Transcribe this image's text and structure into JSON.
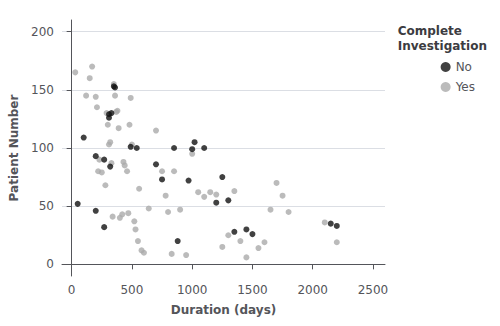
{
  "chart_data": {
    "type": "scatter",
    "xlabel": "Duration (days)",
    "ylabel": "Patient Number",
    "legend_title": "Complete\nInvestigation",
    "xlim": [
      -80,
      2600
    ],
    "ylim": [
      -10,
      210
    ],
    "xticks": [
      0,
      500,
      1000,
      1500,
      2000,
      2500
    ],
    "yticks": [
      0,
      50,
      100,
      150,
      200
    ],
    "grid": "y",
    "legend": "right",
    "series": [
      {
        "name": "No",
        "color": "#111111",
        "x": [
          50,
          100,
          200,
          200,
          270,
          270,
          310,
          310,
          320,
          330,
          350,
          360,
          490,
          540,
          700,
          750,
          850,
          880,
          970,
          1000,
          1020,
          1100,
          1200,
          1250,
          1300,
          1350,
          1450,
          1500,
          2150,
          2200
        ],
        "values": [
          52,
          109,
          93,
          46,
          90,
          32,
          129,
          126,
          84,
          130,
          153,
          152,
          101,
          100,
          86,
          73,
          100,
          20,
          72,
          99,
          105,
          100,
          53,
          75,
          55,
          28,
          30,
          26,
          35,
          33
        ]
      },
      {
        "name": "Yes",
        "color": "#aaaaaa",
        "x": [
          30,
          120,
          150,
          170,
          200,
          210,
          220,
          230,
          250,
          280,
          290,
          300,
          310,
          320,
          330,
          340,
          350,
          360,
          370,
          380,
          390,
          400,
          420,
          430,
          440,
          460,
          470,
          480,
          490,
          500,
          520,
          530,
          550,
          560,
          580,
          600,
          640,
          700,
          750,
          780,
          800,
          830,
          850,
          900,
          950,
          1000,
          1050,
          1100,
          1150,
          1200,
          1250,
          1300,
          1350,
          1400,
          1450,
          1550,
          1600,
          1650,
          1700,
          1750,
          1800,
          2100,
          2200
        ],
        "values": [
          165,
          145,
          160,
          170,
          144,
          135,
          80,
          90,
          79,
          68,
          130,
          120,
          103,
          105,
          87,
          41,
          155,
          145,
          131,
          132,
          117,
          40,
          43,
          88,
          85,
          80,
          44,
          120,
          143,
          103,
          37,
          30,
          20,
          65,
          12,
          10,
          48,
          115,
          80,
          59,
          45,
          9,
          80,
          47,
          8,
          95,
          62,
          58,
          62,
          60,
          15,
          25,
          63,
          20,
          6,
          14,
          19,
          47,
          70,
          59,
          45,
          36,
          19
        ]
      }
    ]
  }
}
